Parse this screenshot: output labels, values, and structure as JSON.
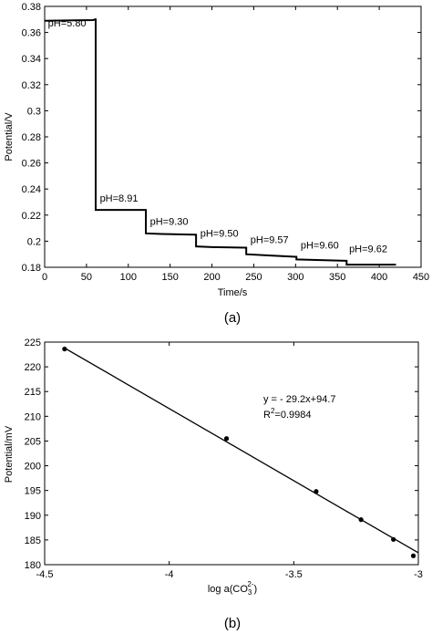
{
  "chart_data": [
    {
      "type": "line",
      "caption": "(a)",
      "xlabel": "Time/s",
      "ylabel": "Potential/V",
      "xlim": [
        0,
        450
      ],
      "ylim": [
        0.18,
        0.38
      ],
      "xticks": [
        0,
        50,
        100,
        150,
        200,
        250,
        300,
        350,
        400,
        450
      ],
      "yticks": [
        0.18,
        0.2,
        0.22,
        0.24,
        0.26,
        0.28,
        0.3,
        0.32,
        0.34,
        0.36,
        0.38
      ],
      "grid": false,
      "series": [
        {
          "x": [
            0,
            58,
            60,
            61,
            61,
            100,
            120,
            121,
            121,
            140,
            180,
            181,
            181,
            200,
            240,
            241,
            241,
            270,
            300,
            301,
            301,
            330,
            360,
            361,
            361,
            420
          ],
          "y": [
            0.369,
            0.3695,
            0.37,
            0.37,
            0.224,
            0.224,
            0.224,
            0.224,
            0.206,
            0.2055,
            0.205,
            0.205,
            0.196,
            0.1955,
            0.195,
            0.195,
            0.19,
            0.189,
            0.188,
            0.188,
            0.186,
            0.1855,
            0.185,
            0.185,
            0.182,
            0.182
          ]
        }
      ],
      "annotations": [
        {
          "text": "pH=5.80",
          "x": 4,
          "y": 0.3645
        },
        {
          "text": "pH=8.91",
          "x": 66,
          "y": 0.2305
        },
        {
          "text": "pH=9.30",
          "x": 126,
          "y": 0.2125
        },
        {
          "text": "pH=9.50",
          "x": 186,
          "y": 0.2035
        },
        {
          "text": "pH=9.57",
          "x": 246,
          "y": 0.1985
        },
        {
          "text": "pH=9.60",
          "x": 306,
          "y": 0.1945
        },
        {
          "text": "pH=9.62",
          "x": 364,
          "y": 0.1915
        }
      ]
    },
    {
      "type": "scatter",
      "caption": "(b)",
      "xlabel": "log a(CO",
      "xlabel_sub": "3",
      "xlabel_sup": "2-",
      "xlabel_end": ")",
      "ylabel": "Potential/mV",
      "xlim": [
        -4.5,
        -3
      ],
      "ylim": [
        180,
        225
      ],
      "xticks": [
        -4.5,
        -4,
        -3.5,
        -3
      ],
      "yticks": [
        180,
        185,
        190,
        195,
        200,
        205,
        210,
        215,
        220,
        225
      ],
      "grid": false,
      "points": {
        "x": [
          -4.42,
          -3.77,
          -3.41,
          -3.23,
          -3.1,
          -3.02
        ],
        "y": [
          223.6,
          205.5,
          194.8,
          189.1,
          185.1,
          181.8
        ]
      },
      "fit": {
        "slope": -29.2,
        "intercept": 94.7,
        "x": [
          -4.42,
          -3.0
        ],
        "y": [
          223.8,
          182.4
        ]
      },
      "equation": "y = - 29.2x+94.7",
      "r2_prefix": "R",
      "r2_sup": "2",
      "r2_value": "=0.9984"
    }
  ]
}
